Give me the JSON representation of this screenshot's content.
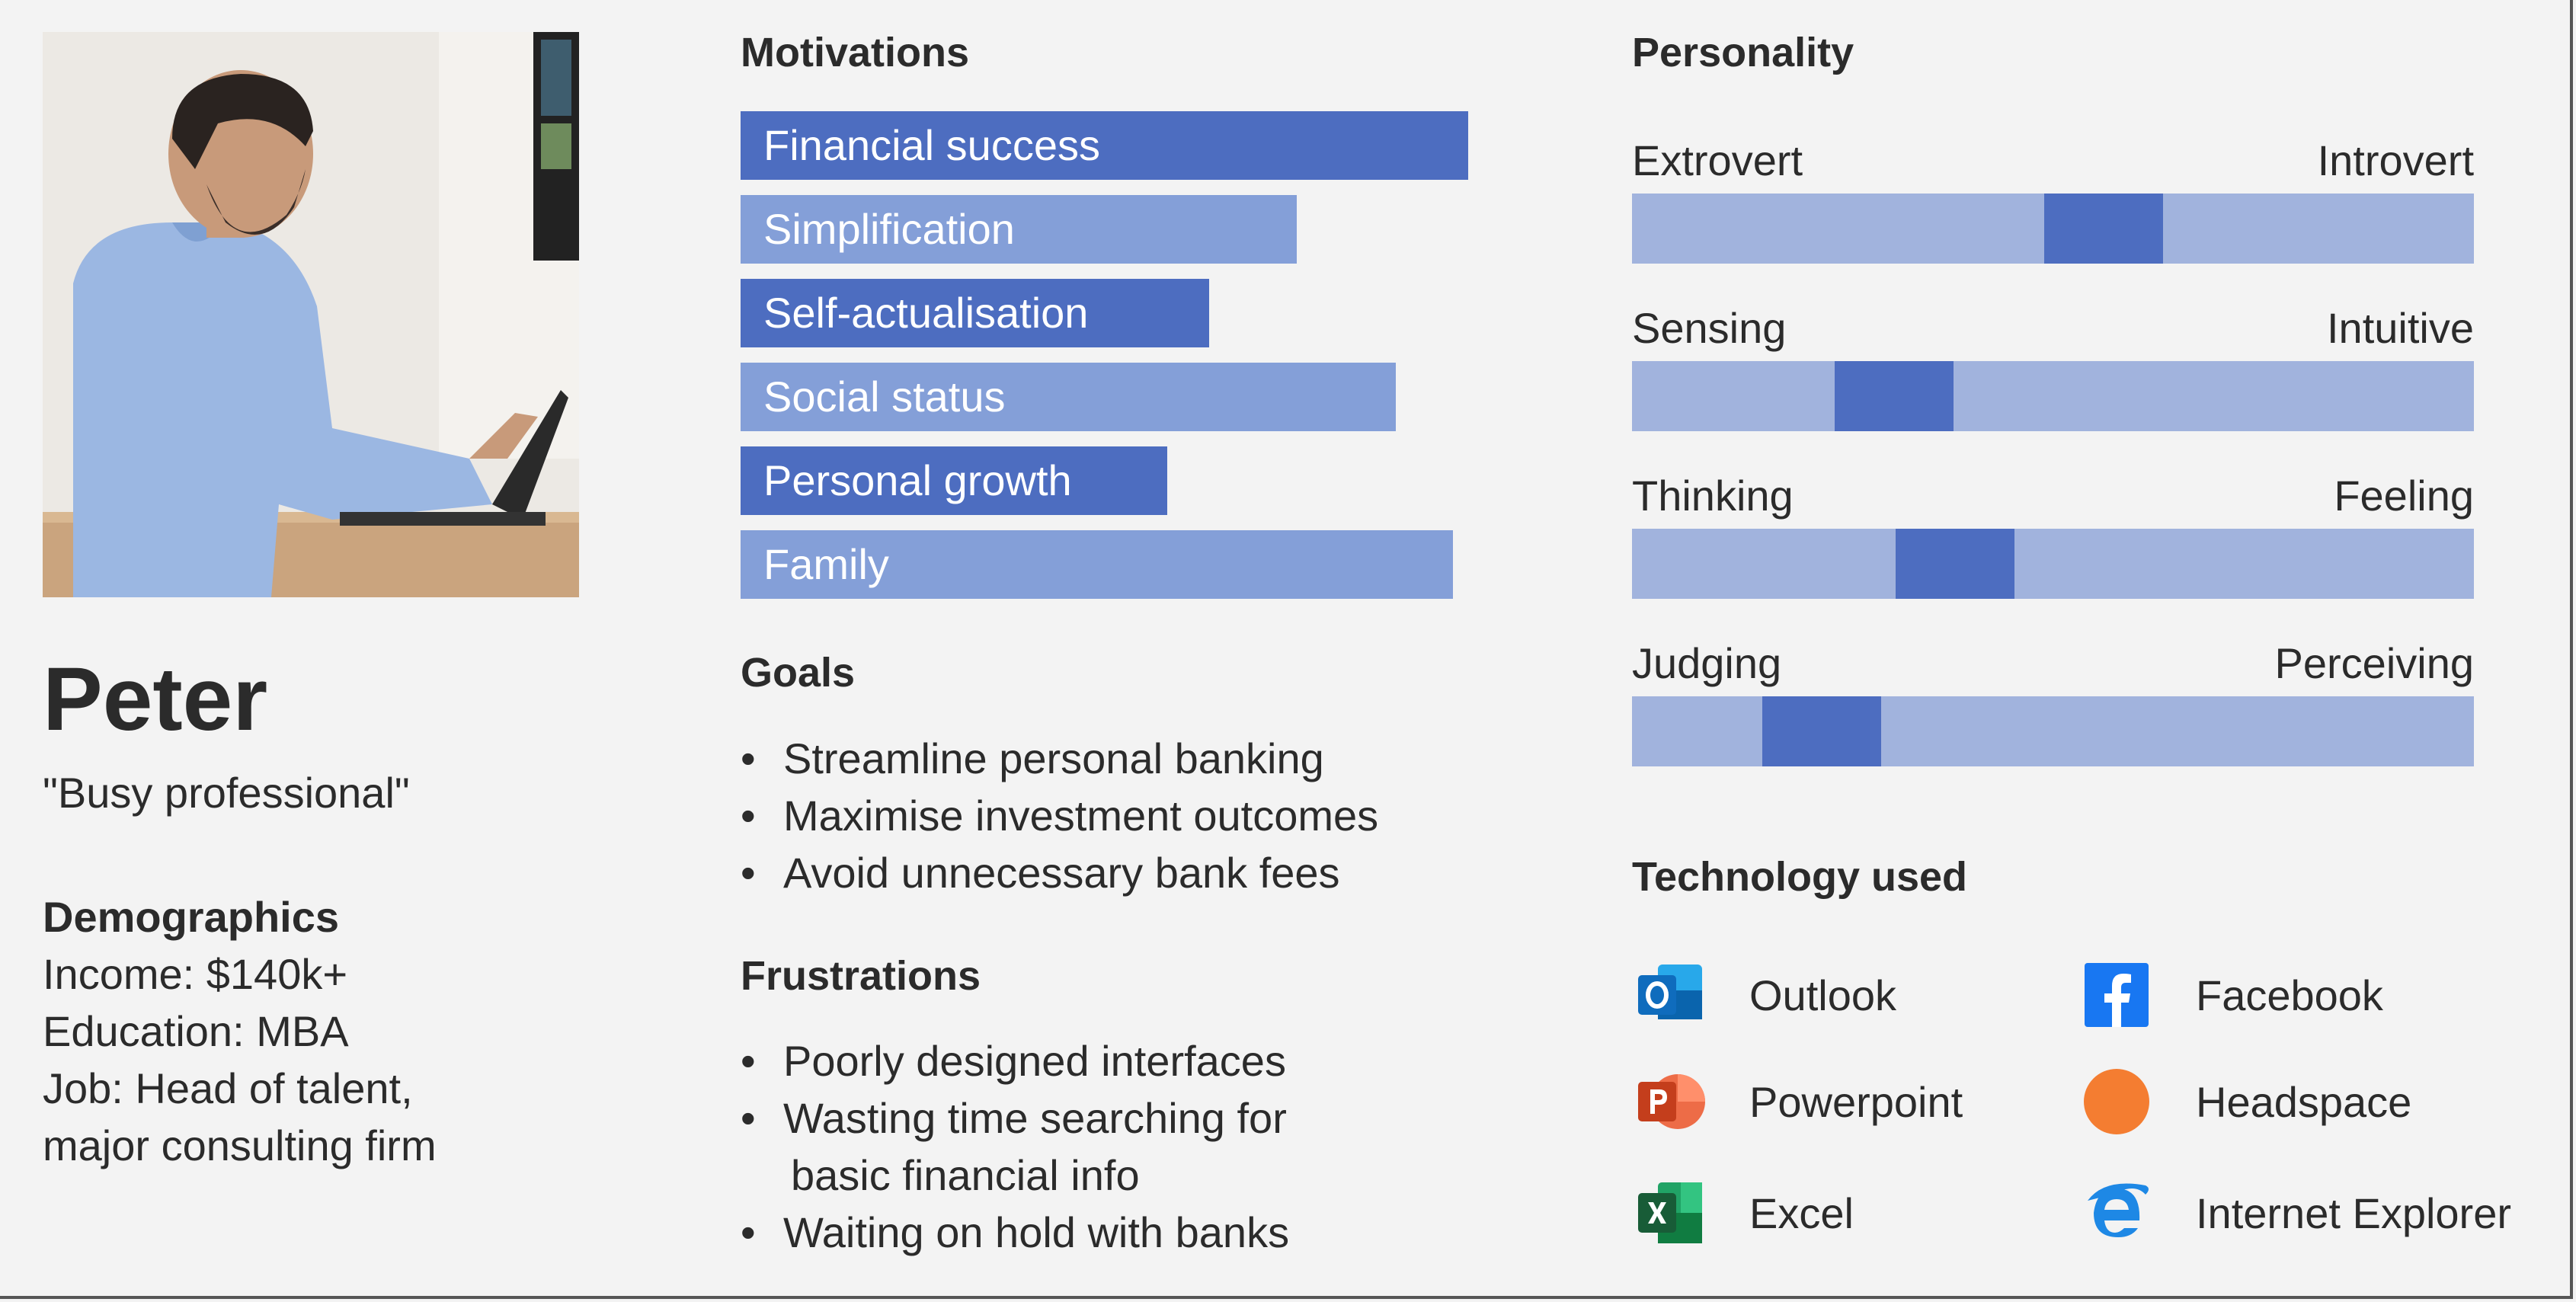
{
  "persona": {
    "name": "Peter",
    "tagline": "\"Busy professional\"",
    "demographics": {
      "title": "Demographics",
      "lines": [
        "Income: $140k+",
        "Education: MBA",
        "Job: Head of talent,",
        "major consulting firm"
      ]
    }
  },
  "motivations": {
    "title": "Motivations",
    "items": [
      {
        "label": "Financial success",
        "value": 0.955
      },
      {
        "label": "Simplification",
        "value": 0.73
      },
      {
        "label": "Self-actualisation",
        "value": 0.615
      },
      {
        "label": "Social status",
        "value": 0.86
      },
      {
        "label": "Personal growth",
        "value": 0.56
      },
      {
        "label": "Family",
        "value": 0.935
      }
    ],
    "colors": {
      "dark": "#4d6dc0",
      "light": "#849fd8"
    }
  },
  "goals": {
    "title": "Goals",
    "items": [
      "Streamline personal banking",
      "Maximise investment outcomes",
      "Avoid unnecessary bank fees"
    ]
  },
  "frustrations": {
    "title": "Frustrations",
    "items": [
      "Poorly designed interfaces",
      "Wasting time searching for",
      "basic financial info",
      "Waiting on hold with banks"
    ]
  },
  "personality": {
    "title": "Personality",
    "scales": [
      {
        "left": "Extrovert",
        "right": "Introvert",
        "value": 0.57
      },
      {
        "left": "Sensing",
        "right": "Intuitive",
        "value": 0.28
      },
      {
        "left": "Thinking",
        "right": "Feeling",
        "value": 0.365
      },
      {
        "left": "Judging",
        "right": "Perceiving",
        "value": 0.18
      }
    ]
  },
  "technology": {
    "title": "Technology used",
    "items": [
      {
        "name": "Outlook",
        "icon": "outlook-icon"
      },
      {
        "name": "Facebook",
        "icon": "facebook-icon"
      },
      {
        "name": "Powerpoint",
        "icon": "powerpoint-icon"
      },
      {
        "name": "Headspace",
        "icon": "headspace-icon"
      },
      {
        "name": "Excel",
        "icon": "excel-icon"
      },
      {
        "name": "Internet Explorer",
        "icon": "internet-explorer-icon"
      }
    ]
  }
}
